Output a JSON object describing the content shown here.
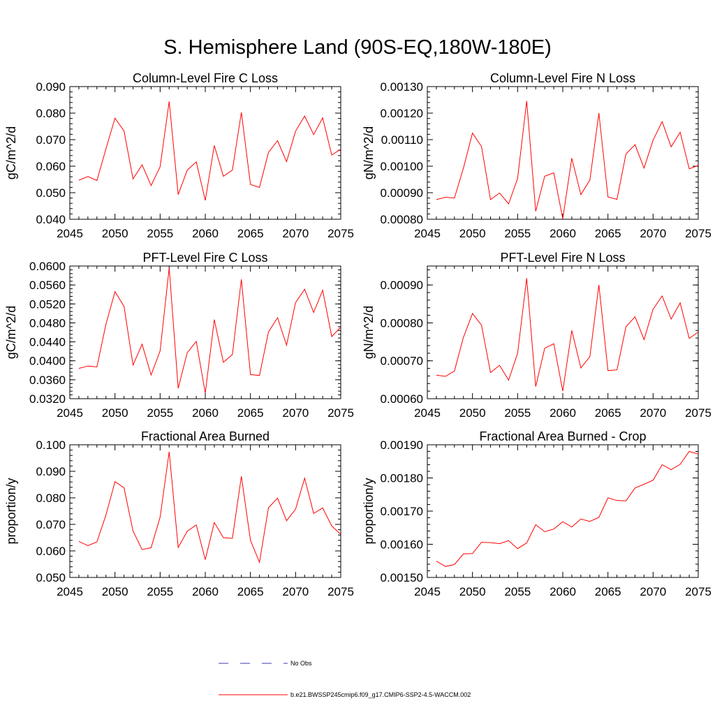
{
  "figure": {
    "title": "S. Hemisphere Land (90S-EQ,180W-180E)"
  },
  "colors": {
    "model_line": "#ff0000",
    "obs_line": "#3a3ab0",
    "axis": "#000000"
  },
  "legend": {
    "obs_label": "No Obs",
    "model_label": "b.e21.BWSSP245cmip6.f09_g17.CMIP6-SSP2-4.5-WACCM.002"
  },
  "chart_data": [
    {
      "type": "line",
      "title": "Column-Level Fire C Loss",
      "xlabel": "",
      "ylabel": "gC/m^2/d",
      "xlim": [
        2045,
        2075
      ],
      "ylim": [
        0.04,
        0.09
      ],
      "xticks": [
        2045,
        2050,
        2055,
        2060,
        2065,
        2070,
        2075
      ],
      "ytick_labels": [
        "0.040",
        "0.050",
        "0.060",
        "0.070",
        "0.080",
        "0.090"
      ],
      "x": [
        2046,
        2047,
        2048,
        2049,
        2050,
        2051,
        2052,
        2053,
        2054,
        2055,
        2056,
        2057,
        2058,
        2059,
        2060,
        2061,
        2062,
        2063,
        2064,
        2065,
        2066,
        2067,
        2068,
        2069,
        2070,
        2071,
        2072,
        2073,
        2074,
        2075
      ],
      "series": [
        {
          "name": "b.e21.BWSSP245cmip6.f09_g17.CMIP6-SSP2-4.5-WACCM.002",
          "values": [
            0.0547,
            0.0561,
            0.0546,
            0.0665,
            0.0781,
            0.0733,
            0.0552,
            0.0605,
            0.0527,
            0.0598,
            0.0844,
            0.0493,
            0.0585,
            0.0616,
            0.0471,
            0.0678,
            0.0562,
            0.0585,
            0.0803,
            0.0531,
            0.052,
            0.0652,
            0.0696,
            0.0617,
            0.0732,
            0.0789,
            0.0719,
            0.0782,
            0.0642,
            0.0664
          ]
        }
      ]
    },
    {
      "type": "line",
      "title": "Column-Level Fire N Loss",
      "xlabel": "",
      "ylabel": "gN/m^2/d",
      "xlim": [
        2045,
        2075
      ],
      "ylim": [
        0.0008,
        0.0013
      ],
      "xticks": [
        2045,
        2050,
        2055,
        2060,
        2065,
        2070,
        2075
      ],
      "ytick_labels": [
        "0.00080",
        "0.00090",
        "0.00100",
        "0.00110",
        "0.00120",
        "0.00130"
      ],
      "x": [
        2046,
        2047,
        2048,
        2049,
        2050,
        2051,
        2052,
        2053,
        2054,
        2055,
        2056,
        2057,
        2058,
        2059,
        2060,
        2061,
        2062,
        2063,
        2064,
        2065,
        2066,
        2067,
        2068,
        2069,
        2070,
        2071,
        2072,
        2073,
        2074,
        2075
      ],
      "series": [
        {
          "name": "b.e21.BWSSP245cmip6.f09_g17.CMIP6-SSP2-4.5-WACCM.002",
          "values": [
            0.000874,
            0.000883,
            0.00088,
            0.000993,
            0.001125,
            0.001074,
            0.000874,
            0.000899,
            0.000858,
            0.000954,
            0.001246,
            0.00083,
            0.000962,
            0.000975,
            0.000802,
            0.00103,
            0.000893,
            0.000948,
            0.0012,
            0.000884,
            0.000875,
            0.001046,
            0.001081,
            0.000993,
            0.001098,
            0.001168,
            0.001073,
            0.001128,
            0.00099,
            0.001003
          ]
        }
      ]
    },
    {
      "type": "line",
      "title": "PFT-Level Fire C Loss",
      "xlabel": "",
      "ylabel": "gC/m^2/d",
      "xlim": [
        2045,
        2075
      ],
      "ylim": [
        0.032,
        0.06
      ],
      "xticks": [
        2045,
        2050,
        2055,
        2060,
        2065,
        2070,
        2075
      ],
      "ytick_labels": [
        "0.0320",
        "0.0360",
        "0.0400",
        "0.0440",
        "0.0480",
        "0.0520",
        "0.0560",
        "0.0600"
      ],
      "x": [
        2046,
        2047,
        2048,
        2049,
        2050,
        2051,
        2052,
        2053,
        2054,
        2055,
        2056,
        2057,
        2058,
        2059,
        2060,
        2061,
        2062,
        2063,
        2064,
        2065,
        2066,
        2067,
        2068,
        2069,
        2070,
        2071,
        2072,
        2073,
        2074,
        2075
      ],
      "series": [
        {
          "name": "b.e21.BWSSP245cmip6.f09_g17.CMIP6-SSP2-4.5-WACCM.002",
          "values": [
            0.0384,
            0.0389,
            0.0387,
            0.0477,
            0.0546,
            0.0515,
            0.0391,
            0.0435,
            0.037,
            0.0421,
            0.0596,
            0.0342,
            0.0417,
            0.0441,
            0.0332,
            0.0487,
            0.0397,
            0.0413,
            0.0572,
            0.0371,
            0.0369,
            0.0461,
            0.0491,
            0.0433,
            0.0523,
            0.0551,
            0.0502,
            0.0549,
            0.0451,
            0.0471
          ]
        }
      ]
    },
    {
      "type": "line",
      "title": "PFT-Level Fire N Loss",
      "xlabel": "",
      "ylabel": "gN/m^2/d",
      "xlim": [
        2045,
        2075
      ],
      "ylim": [
        0.0006,
        0.00095
      ],
      "xticks": [
        2045,
        2050,
        2055,
        2060,
        2065,
        2070,
        2075
      ],
      "ytick_labels": [
        "0.00060",
        "0.00070",
        "0.00080",
        "0.00090"
      ],
      "ytick_values": [
        0.0006,
        0.0007,
        0.0008,
        0.0009
      ],
      "x": [
        2046,
        2047,
        2048,
        2049,
        2050,
        2051,
        2052,
        2053,
        2054,
        2055,
        2056,
        2057,
        2058,
        2059,
        2060,
        2061,
        2062,
        2063,
        2064,
        2065,
        2066,
        2067,
        2068,
        2069,
        2070,
        2071,
        2072,
        2073,
        2074,
        2075
      ],
      "series": [
        {
          "name": "b.e21.BWSSP245cmip6.f09_g17.CMIP6-SSP2-4.5-WACCM.002",
          "values": [
            0.000662,
            0.000659,
            0.000673,
            0.000762,
            0.000825,
            0.000794,
            0.000669,
            0.000688,
            0.000649,
            0.00072,
            0.000918,
            0.000632,
            0.000733,
            0.000745,
            0.00062,
            0.00078,
            0.000681,
            0.000711,
            0.0009,
            0.000674,
            0.000676,
            0.00079,
            0.000816,
            0.000756,
            0.000836,
            0.000871,
            0.00081,
            0.000853,
            0.000759,
            0.000776
          ]
        }
      ]
    },
    {
      "type": "line",
      "title": "Fractional Area Burned",
      "xlabel": "",
      "ylabel": "proportion/y",
      "xlim": [
        2045,
        2075
      ],
      "ylim": [
        0.05,
        0.1
      ],
      "xticks": [
        2045,
        2050,
        2055,
        2060,
        2065,
        2070,
        2075
      ],
      "ytick_labels": [
        "0.050",
        "0.060",
        "0.070",
        "0.080",
        "0.090",
        "0.100"
      ],
      "x": [
        2046,
        2047,
        2048,
        2049,
        2050,
        2051,
        2052,
        2053,
        2054,
        2055,
        2056,
        2057,
        2058,
        2059,
        2060,
        2061,
        2062,
        2063,
        2064,
        2065,
        2066,
        2067,
        2068,
        2069,
        2070,
        2071,
        2072,
        2073,
        2074,
        2075
      ],
      "series": [
        {
          "name": "b.e21.BWSSP245cmip6.f09_g17.CMIP6-SSP2-4.5-WACCM.002",
          "values": [
            0.0636,
            0.062,
            0.0634,
            0.0735,
            0.0861,
            0.0838,
            0.0675,
            0.0605,
            0.0612,
            0.0727,
            0.0974,
            0.0613,
            0.0674,
            0.0698,
            0.0567,
            0.0707,
            0.065,
            0.0647,
            0.0881,
            0.064,
            0.0557,
            0.0763,
            0.0799,
            0.0714,
            0.0757,
            0.0874,
            0.0741,
            0.0762,
            0.0694,
            0.0663
          ]
        }
      ]
    },
    {
      "type": "line",
      "title": "Fractional Area Burned - Crop",
      "xlabel": "",
      "ylabel": "proportion/y",
      "xlim": [
        2045,
        2075
      ],
      "ylim": [
        0.0015,
        0.0019
      ],
      "xticks": [
        2045,
        2050,
        2055,
        2060,
        2065,
        2070,
        2075
      ],
      "ytick_labels": [
        "0.00150",
        "0.00160",
        "0.00170",
        "0.00180",
        "0.00190"
      ],
      "x": [
        2046,
        2047,
        2048,
        2049,
        2050,
        2051,
        2052,
        2053,
        2054,
        2055,
        2056,
        2057,
        2058,
        2059,
        2060,
        2061,
        2062,
        2063,
        2064,
        2065,
        2066,
        2067,
        2068,
        2069,
        2070,
        2071,
        2072,
        2073,
        2074,
        2075
      ],
      "series": [
        {
          "name": "b.e21.BWSSP245cmip6.f09_g17.CMIP6-SSP2-4.5-WACCM.002",
          "values": [
            0.001549,
            0.001533,
            0.001539,
            0.001571,
            0.001572,
            0.001606,
            0.001605,
            0.001602,
            0.001611,
            0.001587,
            0.001604,
            0.001659,
            0.001638,
            0.001646,
            0.001668,
            0.001652,
            0.001676,
            0.001669,
            0.001681,
            0.00174,
            0.001732,
            0.001731,
            0.00177,
            0.001781,
            0.001793,
            0.00184,
            0.001825,
            0.001841,
            0.00188,
            0.001872
          ]
        }
      ]
    }
  ]
}
